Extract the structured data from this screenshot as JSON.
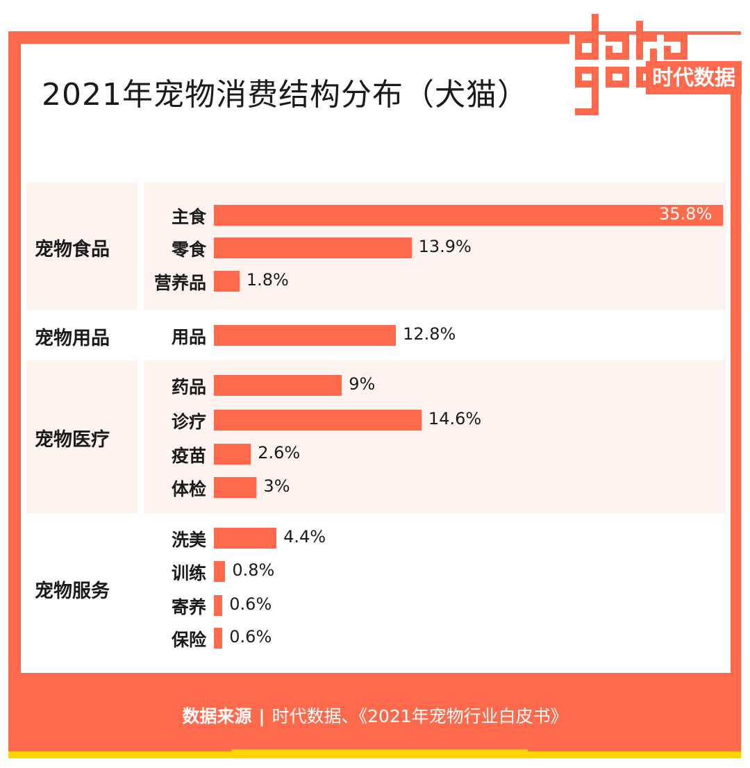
{
  "title": "2021年宠物消费结构分布（犬猫）",
  "logo": {
    "word_top": "data",
    "word_bottom": "god",
    "brand": "时代数据"
  },
  "footer": {
    "source_label": "数据来源",
    "source_text": "时代数据、《2021年宠物行业白皮书》"
  },
  "colors": {
    "accent": "#ff6a4d",
    "yellow": "#ffd400",
    "group_bg": "#fff3f0"
  },
  "chart_data": {
    "type": "bar",
    "orientation": "horizontal",
    "title": "2021年宠物消费结构分布（犬猫）",
    "unit": "%",
    "xlim": [
      0,
      35.8
    ],
    "groups": [
      {
        "name": "宠物食品",
        "items": [
          {
            "label": "主食",
            "value": 35.8,
            "text": "35.8%"
          },
          {
            "label": "零食",
            "value": 13.9,
            "text": "13.9%"
          },
          {
            "label": "营养品",
            "value": 1.8,
            "text": "1.8%"
          }
        ]
      },
      {
        "name": "宠物用品",
        "items": [
          {
            "label": "用品",
            "value": 12.8,
            "text": "12.8%"
          }
        ]
      },
      {
        "name": "宠物医疗",
        "items": [
          {
            "label": "药品",
            "value": 9,
            "text": "9%"
          },
          {
            "label": "诊疗",
            "value": 14.6,
            "text": "14.6%"
          },
          {
            "label": "疫苗",
            "value": 2.6,
            "text": "2.6%"
          },
          {
            "label": "体检",
            "value": 3,
            "text": "3%"
          }
        ]
      },
      {
        "name": "宠物服务",
        "items": [
          {
            "label": "洗美",
            "value": 4.4,
            "text": "4.4%"
          },
          {
            "label": "训练",
            "value": 0.8,
            "text": "0.8%"
          },
          {
            "label": "寄养",
            "value": 0.6,
            "text": "0.6%"
          },
          {
            "label": "保险",
            "value": 0.6,
            "text": "0.6%"
          }
        ]
      }
    ]
  }
}
